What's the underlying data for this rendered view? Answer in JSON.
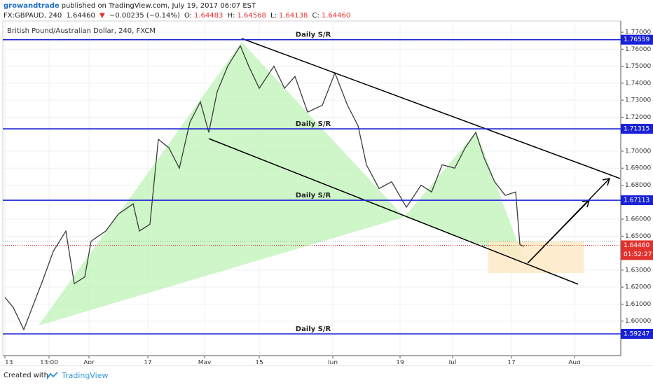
{
  "header": {
    "author": "growandtrade",
    "published": "published on TradingView.com, July 19, 2017 06:07 EST",
    "symbol": "FX:GBPAUD, 240",
    "last": "1.64460",
    "arrow": "▼",
    "change": "−0.00235 (−0.14%)",
    "o_label": "O:",
    "o": "1.64483",
    "h_label": "H:",
    "h": "1.64568",
    "l_label": "L:",
    "l": "1.64138",
    "c_label": "C:",
    "c": "1.64460"
  },
  "footer": {
    "created": "Created with",
    "brand": "TradingView"
  },
  "chart_data": {
    "type": "line",
    "title": "British Pound/Australian Dollar, 240, FXCM",
    "x": [
      1,
      5,
      10,
      14,
      19,
      24,
      30,
      34,
      39,
      42,
      49,
      55,
      62,
      65,
      70,
      74,
      79,
      84,
      89,
      94,
      98,
      102,
      107,
      113,
      117,
      122,
      129,
      134,
      139,
      145,
      152,
      158,
      164,
      169,
      173,
      179,
      185,
      192,
      199,
      204,
      209,
      215,
      220,
      225,
      229,
      234,
      239,
      244,
      246,
      248
    ],
    "series": [
      {
        "name": "GBPAUD",
        "color": "#3b3b3b",
        "values": [
          1.614,
          1.608,
          1.595,
          1.608,
          1.624,
          1.641,
          1.653,
          1.622,
          1.626,
          1.647,
          1.653,
          1.663,
          1.669,
          1.653,
          1.657,
          1.707,
          1.702,
          1.69,
          1.717,
          1.729,
          1.711,
          1.735,
          1.75,
          1.762,
          1.75,
          1.737,
          1.75,
          1.737,
          1.744,
          1.723,
          1.727,
          1.746,
          1.727,
          1.715,
          1.692,
          1.678,
          1.682,
          1.667,
          1.68,
          1.676,
          1.692,
          1.69,
          1.702,
          1.711,
          1.696,
          1.682,
          1.674,
          1.676,
          1.645,
          1.644
        ]
      }
    ],
    "xlim": [
      0,
      294
    ],
    "xticks": [
      {
        "value": 1,
        "label": "13"
      },
      {
        "value": 22,
        "label": "13:00"
      },
      {
        "value": 41,
        "label": "Apr"
      },
      {
        "value": 69,
        "label": "17"
      },
      {
        "value": 96,
        "label": "May"
      },
      {
        "value": 122,
        "label": "15"
      },
      {
        "value": 157,
        "label": "Jun"
      },
      {
        "value": 189,
        "label": "19"
      },
      {
        "value": 214,
        "label": "Jul"
      },
      {
        "value": 242,
        "label": "17"
      },
      {
        "value": 272,
        "label": "Aug"
      }
    ],
    "ylim": [
      1.5797,
      1.7766
    ],
    "yticks": [
      {
        "value": 1.77,
        "label": "1.77000"
      },
      {
        "value": 1.76,
        "label": "1.76000"
      },
      {
        "value": 1.75,
        "label": "1.75000"
      },
      {
        "value": 1.74,
        "label": "1.74000"
      },
      {
        "value": 1.73,
        "label": "1.73000"
      },
      {
        "value": 1.72,
        "label": "1.72000"
      },
      {
        "value": 1.7,
        "label": "1.70000"
      },
      {
        "value": 1.69,
        "label": "1.69000"
      },
      {
        "value": 1.68,
        "label": "1.68000"
      },
      {
        "value": 1.66,
        "label": "1.66000"
      },
      {
        "value": 1.65,
        "label": "1.65000"
      },
      {
        "value": 1.63,
        "label": "1.63000"
      },
      {
        "value": 1.62,
        "label": "1.62000"
      },
      {
        "value": 1.61,
        "label": "1.61000"
      },
      {
        "value": 1.6,
        "label": "1.60000"
      }
    ],
    "grid": true,
    "levels": [
      {
        "value": 1.76559,
        "name": "Daily S/R"
      },
      {
        "value": 1.71315,
        "name": "Daily S/R"
      },
      {
        "value": 1.67113,
        "name": "Daily S/R"
      },
      {
        "value": 1.59247,
        "name": "Daily S/R"
      }
    ],
    "level_color": "#1a22d6",
    "last_price": {
      "value": 1.6446,
      "label": "1.64460"
    },
    "countdown": "01:52:27",
    "last_color": "#e0322d"
  }
}
